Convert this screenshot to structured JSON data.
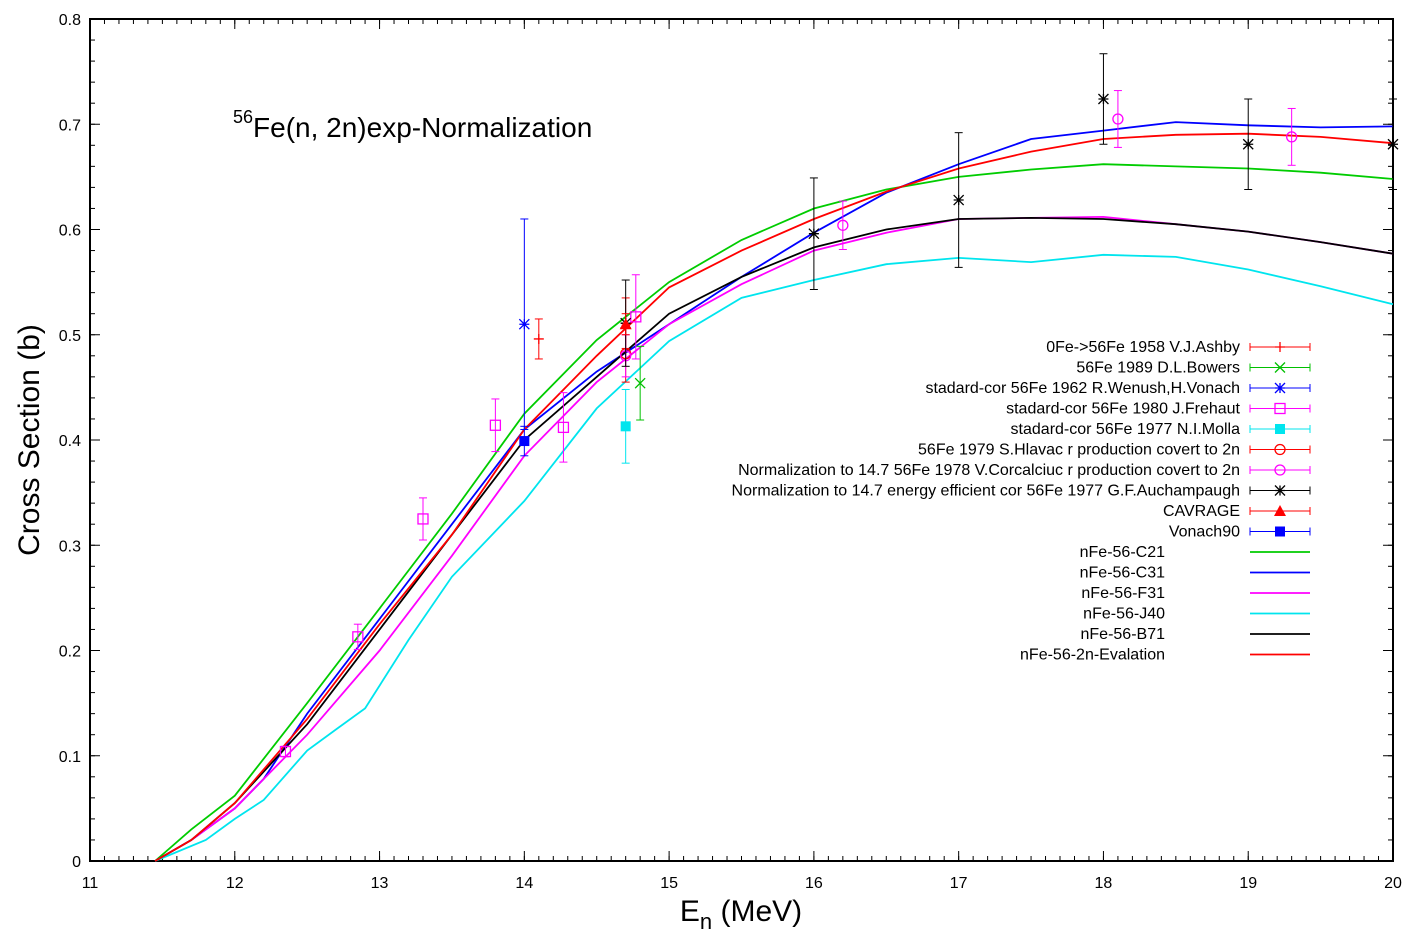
{
  "chart_data": {
    "type": "line",
    "annotation": {
      "sup": "56",
      "text": "Fe(n, 2n)exp-Normalization"
    },
    "xlabel": {
      "main": "E",
      "sub": "n",
      "rest": " (MeV)"
    },
    "ylabel": "Cross Section (b)",
    "xlim": [
      11,
      20
    ],
    "ylim": [
      0,
      0.8
    ],
    "xticks": [
      11,
      12,
      13,
      14,
      15,
      16,
      17,
      18,
      19,
      20
    ],
    "yticks": [
      0,
      0.1,
      0.2,
      0.3,
      0.4,
      0.5,
      0.6,
      0.7,
      0.8
    ],
    "grid": false,
    "legend_position": "right",
    "exp_series": [
      {
        "name": "0Fe->56Fe 1958 V.J.Ashby",
        "color": "#ff0000",
        "marker": "plus",
        "points": [
          {
            "x": 14.1,
            "y": 0.496,
            "lo": 0.477,
            "hi": 0.515
          },
          {
            "x": 14.7,
            "y": 0.511,
            "lo": 0.487,
            "hi": 0.535
          }
        ]
      },
      {
        "name": "56Fe 1989 D.L.Bowers",
        "color": "#00c000",
        "marker": "cross",
        "points": [
          {
            "x": 14.8,
            "y": 0.454,
            "lo": 0.419,
            "hi": 0.489
          }
        ]
      },
      {
        "name": "stadard-cor 56Fe  1962 R.Wenush,H.Vonach",
        "color": "#0000ff",
        "marker": "star",
        "points": [
          {
            "x": 14.0,
            "y": 0.51,
            "lo": 0.41,
            "hi": 0.61
          }
        ]
      },
      {
        "name": "stadard-cor 56Fe 1980 J.Frehaut",
        "color": "#ff00ff",
        "marker": "square-open",
        "points": [
          {
            "x": 12.35,
            "y": 0.104,
            "lo": 0.099,
            "hi": 0.109
          },
          {
            "x": 12.85,
            "y": 0.213,
            "lo": 0.201,
            "hi": 0.225
          },
          {
            "x": 13.3,
            "y": 0.325,
            "lo": 0.305,
            "hi": 0.345
          },
          {
            "x": 13.8,
            "y": 0.414,
            "lo": 0.389,
            "hi": 0.439
          },
          {
            "x": 14.27,
            "y": 0.412,
            "lo": 0.379,
            "hi": 0.445
          },
          {
            "x": 14.77,
            "y": 0.517,
            "lo": 0.477,
            "hi": 0.557
          }
        ]
      },
      {
        "name": "stadard-cor 56Fe 1977 N.I.Molla",
        "color": "#00e5ee",
        "marker": "square-filled",
        "points": [
          {
            "x": 14.7,
            "y": 0.413,
            "lo": 0.378,
            "hi": 0.448
          }
        ]
      },
      {
        "name": "56Fe 1979  S.Hlavac r production covert to 2n",
        "color": "#ff0000",
        "marker": "circle-open",
        "points": [
          {
            "x": 14.7,
            "y": 0.482,
            "lo": 0.455,
            "hi": 0.509
          }
        ]
      },
      {
        "name": "Normalization to 14.7 56Fe 1978 V.Corcalciuc r production covert to 2n",
        "color": "#ff00ff",
        "marker": "circle-open",
        "points": [
          {
            "x": 14.7,
            "y": 0.48,
            "lo": 0.46,
            "hi": 0.5
          },
          {
            "x": 16.2,
            "y": 0.604,
            "lo": 0.581,
            "hi": 0.627
          },
          {
            "x": 18.1,
            "y": 0.705,
            "lo": 0.678,
            "hi": 0.732
          },
          {
            "x": 19.3,
            "y": 0.688,
            "lo": 0.661,
            "hi": 0.715
          }
        ]
      },
      {
        "name": "Normalization to 14.7 energy efficient cor  56Fe 1977  G.F.Auchampaugh",
        "color": "#000000",
        "marker": "star",
        "points": [
          {
            "x": 14.7,
            "y": 0.511,
            "lo": 0.47,
            "hi": 0.552
          },
          {
            "x": 16.0,
            "y": 0.596,
            "lo": 0.543,
            "hi": 0.649
          },
          {
            "x": 17.0,
            "y": 0.628,
            "lo": 0.564,
            "hi": 0.692
          },
          {
            "x": 18.0,
            "y": 0.724,
            "lo": 0.681,
            "hi": 0.767
          },
          {
            "x": 19.0,
            "y": 0.681,
            "lo": 0.638,
            "hi": 0.724
          },
          {
            "x": 20.0,
            "y": 0.681,
            "lo": 0.638,
            "hi": 0.724
          }
        ]
      },
      {
        "name": "CAVRAGE",
        "color": "#ff0000",
        "marker": "triangle-filled",
        "points": [
          {
            "x": 14.7,
            "y": 0.51,
            "lo": 0.5,
            "hi": 0.52
          }
        ]
      },
      {
        "name": "Vonach90",
        "color": "#0000ff",
        "marker": "square-filled",
        "points": [
          {
            "x": 14.0,
            "y": 0.399,
            "lo": 0.385,
            "hi": 0.413
          }
        ]
      }
    ],
    "curves": [
      {
        "name": "nFe-56-C21",
        "color": "#00cc00",
        "x": [
          11.45,
          11.7,
          12.0,
          12.5,
          13.0,
          13.5,
          14.0,
          14.5,
          15.0,
          15.5,
          16.0,
          16.5,
          17.0,
          17.5,
          18.0,
          18.5,
          19.0,
          19.5,
          20.0
        ],
        "y": [
          0,
          0.03,
          0.062,
          0.15,
          0.24,
          0.33,
          0.425,
          0.495,
          0.55,
          0.59,
          0.62,
          0.638,
          0.65,
          0.657,
          0.662,
          0.66,
          0.658,
          0.654,
          0.648
        ]
      },
      {
        "name": "nFe-56-C31",
        "color": "#0000ff",
        "x": [
          11.45,
          11.7,
          12.0,
          12.2,
          12.5,
          13.0,
          13.5,
          14.0,
          14.5,
          15.0,
          15.5,
          16.0,
          16.5,
          17.0,
          17.5,
          18.0,
          18.5,
          19.0,
          19.5,
          20.0
        ],
        "y": [
          0,
          0.02,
          0.05,
          0.078,
          0.14,
          0.23,
          0.32,
          0.41,
          0.465,
          0.51,
          0.555,
          0.597,
          0.635,
          0.662,
          0.686,
          0.694,
          0.702,
          0.699,
          0.697,
          0.698
        ]
      },
      {
        "name": "nFe-56-F31",
        "color": "#ff00ff",
        "x": [
          11.45,
          11.7,
          12.0,
          12.5,
          13.0,
          13.5,
          14.0,
          14.5,
          15.0,
          15.5,
          16.0,
          16.5,
          17.0,
          17.5,
          18.0,
          18.5,
          19.0,
          19.5,
          20.0
        ],
        "y": [
          0,
          0.02,
          0.05,
          0.12,
          0.2,
          0.29,
          0.385,
          0.455,
          0.51,
          0.548,
          0.58,
          0.597,
          0.61,
          0.611,
          0.612,
          0.605,
          0.598,
          0.588,
          0.577
        ]
      },
      {
        "name": "nFe-56-J40",
        "color": "#00e5ee",
        "x": [
          11.45,
          11.8,
          12.0,
          12.2,
          12.5,
          12.7,
          12.9,
          13.2,
          13.5,
          14.0,
          14.5,
          15.0,
          15.5,
          16.0,
          16.5,
          17.0,
          17.5,
          18.0,
          18.5,
          19.0,
          19.5,
          20.0
        ],
        "y": [
          0,
          0.02,
          0.04,
          0.058,
          0.105,
          0.125,
          0.145,
          0.21,
          0.27,
          0.342,
          0.43,
          0.494,
          0.535,
          0.552,
          0.567,
          0.573,
          0.569,
          0.576,
          0.574,
          0.562,
          0.546,
          0.529
        ]
      },
      {
        "name": "nFe-56-B71",
        "color": "#000000",
        "x": [
          11.45,
          11.7,
          12.0,
          12.5,
          13.0,
          13.5,
          14.0,
          14.5,
          15.0,
          15.5,
          16.0,
          16.5,
          17.0,
          17.5,
          18.0,
          18.5,
          19.0,
          19.5,
          20.0
        ],
        "y": [
          0,
          0.02,
          0.055,
          0.13,
          0.22,
          0.31,
          0.4,
          0.46,
          0.52,
          0.555,
          0.583,
          0.6,
          0.61,
          0.611,
          0.61,
          0.605,
          0.598,
          0.588,
          0.577
        ]
      },
      {
        "name": "nFe-56-2n-Evalation",
        "color": "#ff0000",
        "x": [
          11.45,
          11.7,
          12.0,
          12.5,
          13.0,
          13.5,
          14.0,
          14.5,
          15.0,
          15.5,
          16.0,
          16.5,
          17.0,
          17.5,
          18.0,
          18.5,
          19.0,
          19.5,
          20.0
        ],
        "y": [
          0,
          0.02,
          0.055,
          0.135,
          0.225,
          0.31,
          0.41,
          0.48,
          0.545,
          0.58,
          0.61,
          0.636,
          0.658,
          0.674,
          0.686,
          0.69,
          0.691,
          0.688,
          0.682
        ]
      }
    ]
  }
}
